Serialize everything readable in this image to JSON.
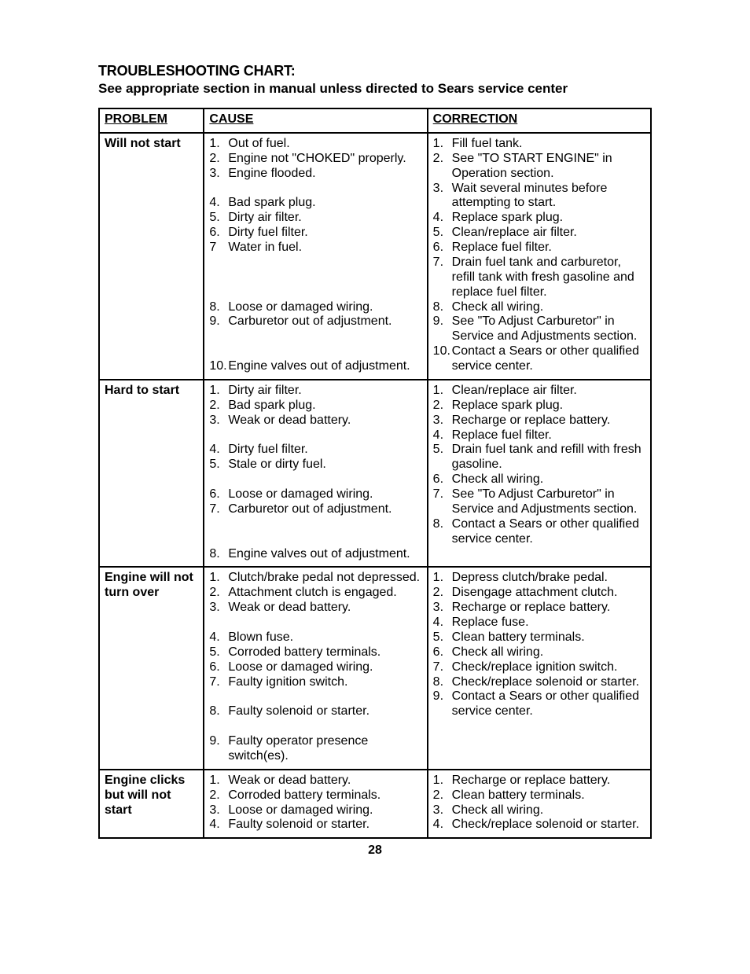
{
  "title": {
    "line1": "TROUBLESHOOTING CHART:",
    "line2": "See appropriate section in manual unless directed to Sears service center"
  },
  "headers": {
    "problem": "PROBLEM",
    "cause": "CAUSE",
    "correction": "CORRECTION"
  },
  "page_number": "28",
  "colors": {
    "border": "#000000",
    "text": "#000000",
    "background": "#ffffff"
  },
  "typography": {
    "family": "Arial",
    "body_size_pt": 12,
    "title_weight": "bold"
  },
  "rows": [
    {
      "problem": "Will not start",
      "cause": [
        {
          "n": "1.",
          "t": "Out of fuel."
        },
        {
          "n": "2.",
          "t": "Engine not \"CHOKED\" properly."
        },
        {
          "n": "3.",
          "t": "Engine flooded."
        },
        {
          "n": "",
          "t": " "
        },
        {
          "n": "4.",
          "t": "Bad spark plug."
        },
        {
          "n": "5.",
          "t": "Dirty air filter."
        },
        {
          "n": "6.",
          "t": "Dirty fuel filter."
        },
        {
          "n": "7",
          "t": "Water in fuel."
        },
        {
          "n": "",
          "t": " "
        },
        {
          "n": "",
          "t": " "
        },
        {
          "n": "",
          "t": " "
        },
        {
          "n": "8.",
          "t": "Loose or damaged wiring."
        },
        {
          "n": "9.",
          "t": "Carburetor out of adjustment."
        },
        {
          "n": "",
          "t": " "
        },
        {
          "n": "",
          "t": " "
        },
        {
          "n": "10.",
          "t": "Engine valves out of adjustment."
        }
      ],
      "correction": [
        {
          "n": "1.",
          "t": "Fill fuel tank."
        },
        {
          "n": "2.",
          "t": "See \"TO START ENGINE\" in Operation section."
        },
        {
          "n": "3.",
          "t": "Wait several minutes before attempting to start."
        },
        {
          "n": "4.",
          "t": "Replace spark plug."
        },
        {
          "n": "5.",
          "t": "Clean/replace air filter."
        },
        {
          "n": "6.",
          "t": "Replace fuel filter."
        },
        {
          "n": "7.",
          "t": "Drain fuel tank and carburetor, refill tank with fresh gasoline and replace fuel filter."
        },
        {
          "n": "8.",
          "t": "Check all wiring."
        },
        {
          "n": "9.",
          "t": "See \"To Adjust Carburetor\" in Service and Adjustments section."
        },
        {
          "n": "10.",
          "t": "Contact a Sears or other qualified service center."
        }
      ]
    },
    {
      "problem": "Hard to start",
      "cause": [
        {
          "n": "1.",
          "t": "Dirty air filter."
        },
        {
          "n": "2.",
          "t": "Bad spark plug."
        },
        {
          "n": "3.",
          "t": "Weak or dead battery."
        },
        {
          "n": "",
          "t": " "
        },
        {
          "n": "4.",
          "t": "Dirty fuel filter."
        },
        {
          "n": "5.",
          "t": "Stale or dirty fuel."
        },
        {
          "n": "",
          "t": " "
        },
        {
          "n": "6.",
          "t": "Loose or damaged wiring."
        },
        {
          "n": "7.",
          "t": "Carburetor out of adjustment."
        },
        {
          "n": "",
          "t": " "
        },
        {
          "n": "",
          "t": " "
        },
        {
          "n": "8.",
          "t": "Engine valves out of adjustment."
        }
      ],
      "correction": [
        {
          "n": "1.",
          "t": "Clean/replace air filter."
        },
        {
          "n": "2.",
          "t": "Replace spark plug."
        },
        {
          "n": "3.",
          "t": "Recharge or replace battery."
        },
        {
          "n": "4.",
          "t": "Replace fuel filter."
        },
        {
          "n": "5.",
          "t": "Drain fuel tank and refill with fresh gasoline."
        },
        {
          "n": "6.",
          "t": "Check all wiring."
        },
        {
          "n": "7.",
          "t": "See \"To Adjust Carburetor\" in Service and Adjustments section."
        },
        {
          "n": "8.",
          "t": "Contact a Sears or other qualified service center."
        }
      ]
    },
    {
      "problem": "Engine will not turn over",
      "cause": [
        {
          "n": "1.",
          "t": "Clutch/brake pedal not depressed."
        },
        {
          "n": "2.",
          "t": "Attachment clutch is engaged."
        },
        {
          "n": "3.",
          "t": "Weak or dead battery."
        },
        {
          "n": "",
          "t": " "
        },
        {
          "n": "4.",
          "t": "Blown fuse."
        },
        {
          "n": "5.",
          "t": "Corroded battery terminals."
        },
        {
          "n": "6.",
          "t": "Loose or damaged wiring."
        },
        {
          "n": "7.",
          "t": "Faulty ignition switch."
        },
        {
          "n": "",
          "t": " "
        },
        {
          "n": "8.",
          "t": "Faulty solenoid or starter."
        },
        {
          "n": "",
          "t": " "
        },
        {
          "n": "9.",
          "t": "Faulty operator presence switch(es)."
        }
      ],
      "correction": [
        {
          "n": "1.",
          "t": "Depress clutch/brake pedal."
        },
        {
          "n": "2.",
          "t": "Disengage attachment clutch."
        },
        {
          "n": "3.",
          "t": "Recharge or replace battery."
        },
        {
          "n": "4.",
          "t": "Replace fuse."
        },
        {
          "n": "5.",
          "t": "Clean battery terminals."
        },
        {
          "n": "6.",
          "t": "Check all wiring."
        },
        {
          "n": "7.",
          "t": "Check/replace ignition switch."
        },
        {
          "n": "8.",
          "t": "Check/replace solenoid or starter."
        },
        {
          "n": "9.",
          "t": "Contact a Sears or other qualified service center."
        }
      ]
    },
    {
      "problem": "Engine clicks but will not start",
      "cause": [
        {
          "n": "1.",
          "t": "Weak or dead battery."
        },
        {
          "n": "2.",
          "t": "Corroded battery terminals."
        },
        {
          "n": "3.",
          "t": "Loose or damaged wiring."
        },
        {
          "n": "4.",
          "t": "Faulty solenoid or starter."
        }
      ],
      "correction": [
        {
          "n": "1.",
          "t": "Recharge or replace battery."
        },
        {
          "n": "2.",
          "t": "Clean battery terminals."
        },
        {
          "n": "3.",
          "t": "Check all wiring."
        },
        {
          "n": "4.",
          "t": "Check/replace solenoid or starter."
        }
      ]
    }
  ]
}
